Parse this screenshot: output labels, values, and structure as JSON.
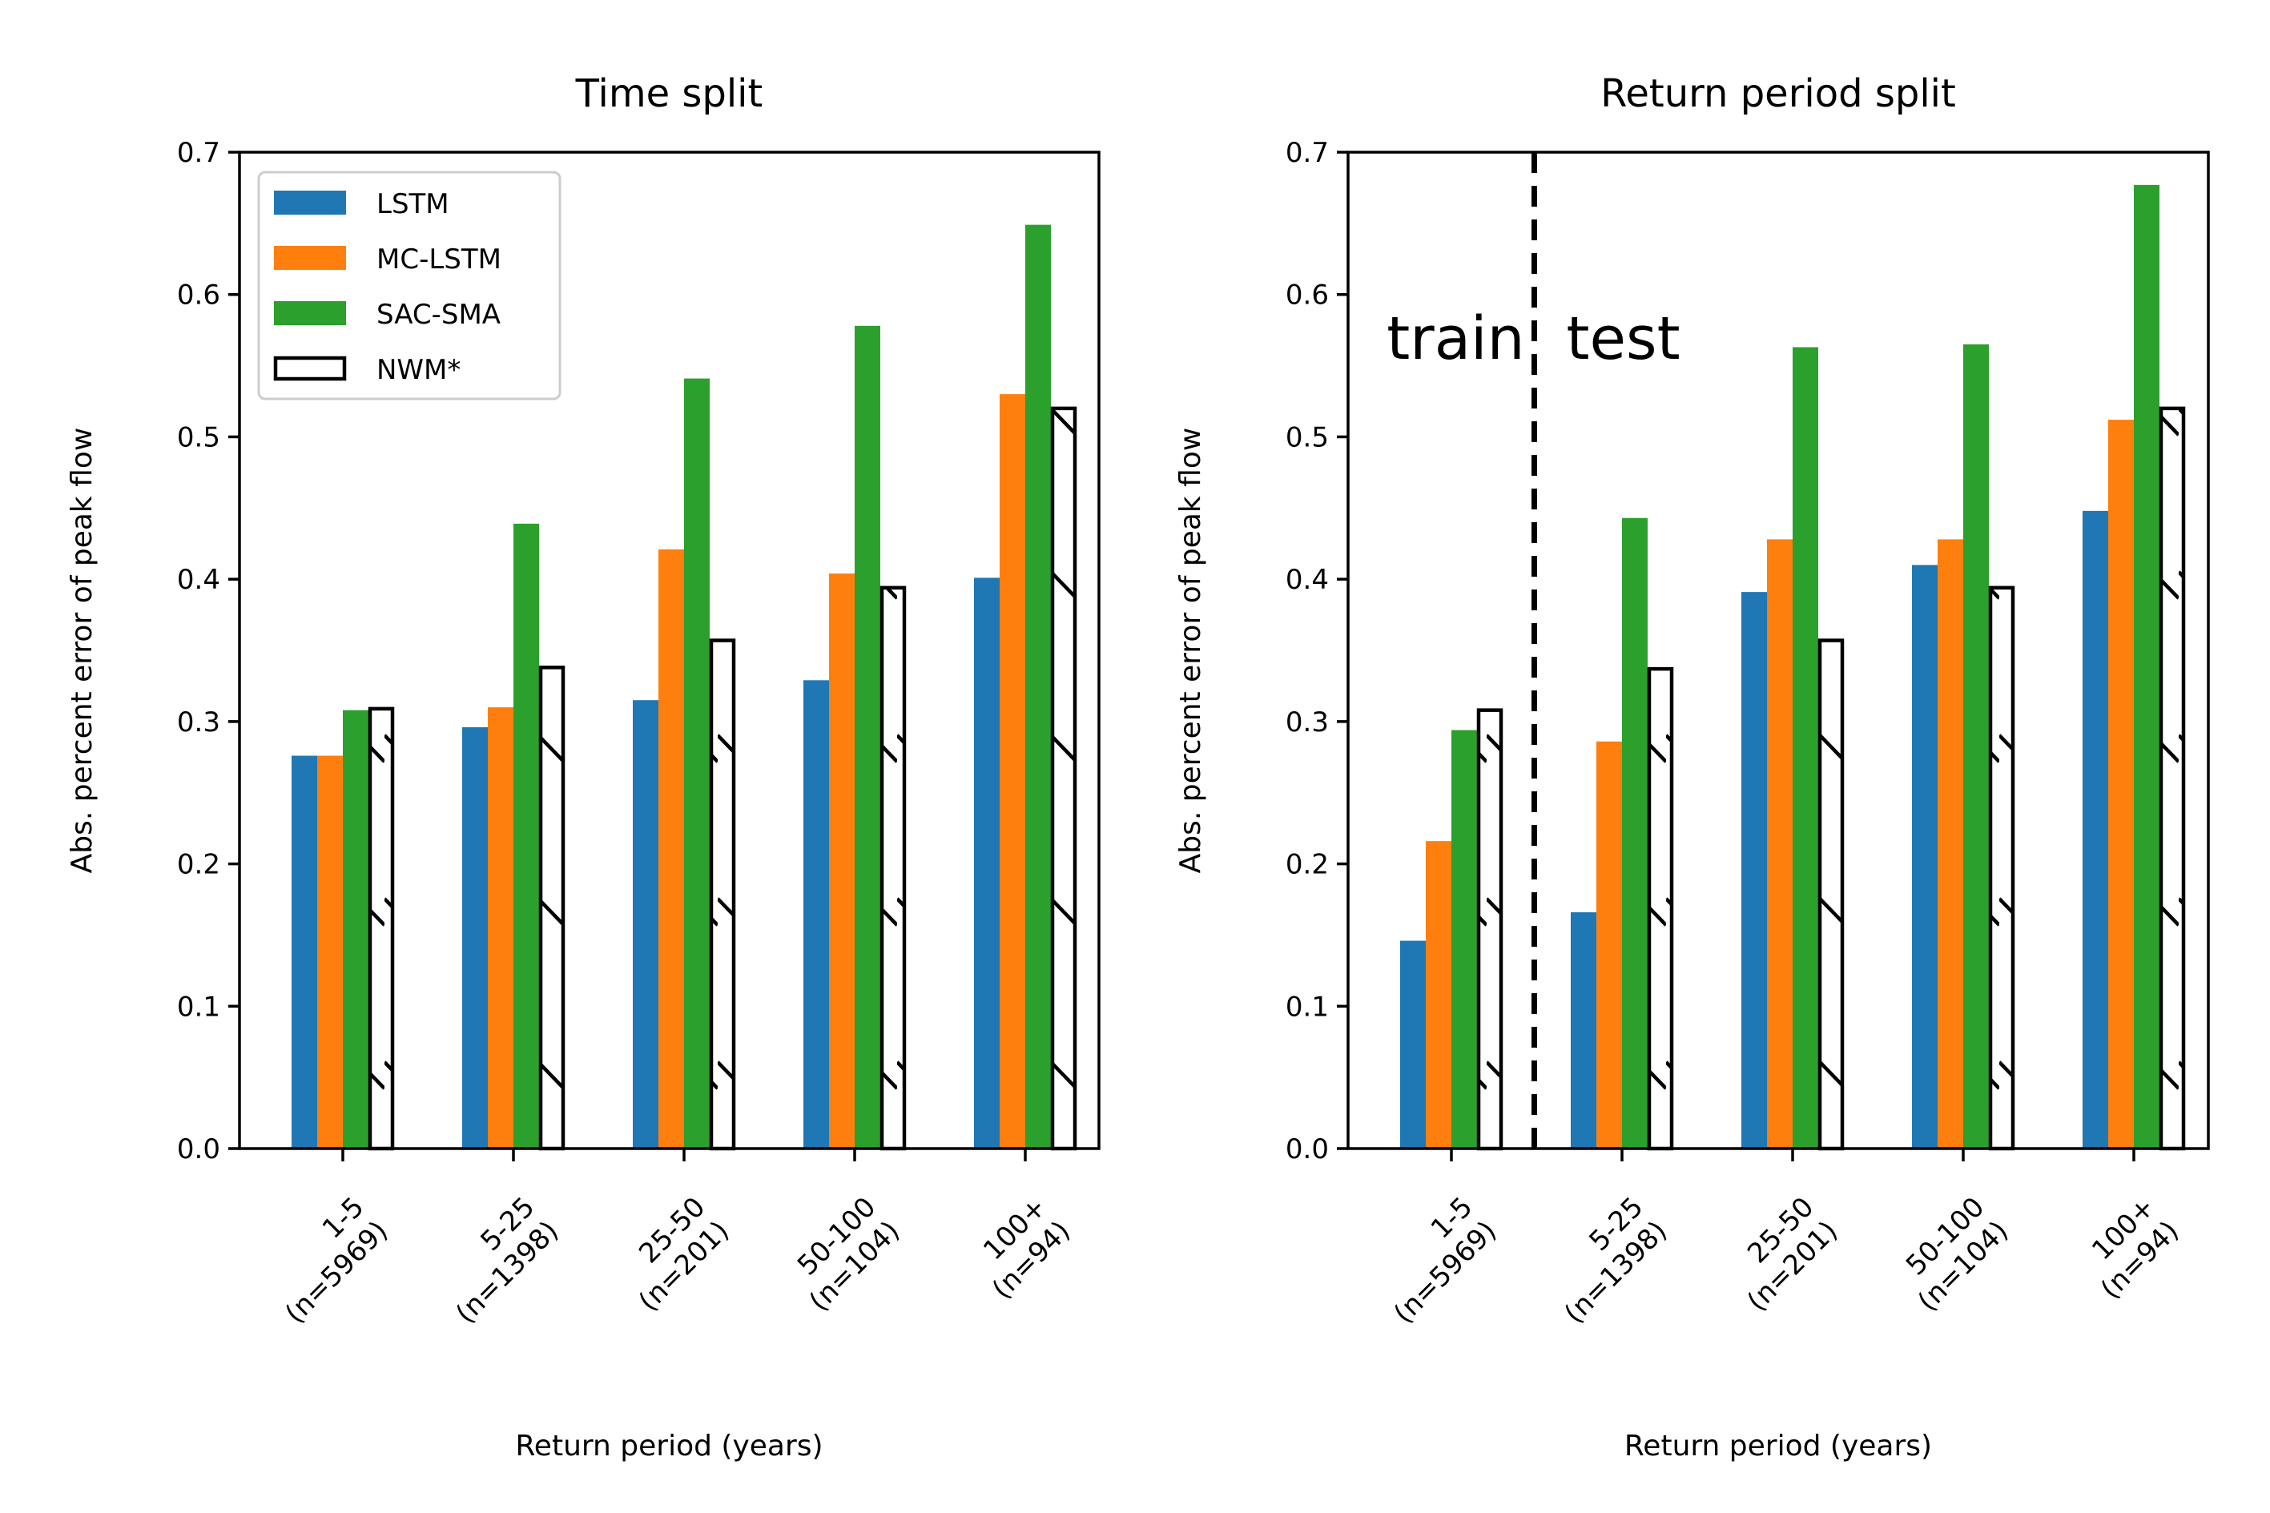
{
  "chart_data": [
    {
      "type": "bar",
      "title": "Time split",
      "xlabel": "Return period (years)",
      "ylabel": "Abs. percent error of peak flow",
      "ylim": [
        0,
        0.7
      ],
      "yticks": [
        "0.0",
        "0.1",
        "0.2",
        "0.3",
        "0.4",
        "0.5",
        "0.6",
        "0.7"
      ],
      "categories": [
        [
          "1-5",
          "(n=5969)"
        ],
        [
          "5-25",
          "(n=1398)"
        ],
        [
          "25-50",
          "(n=201)"
        ],
        [
          "50-100",
          "(n=104)"
        ],
        [
          "100+",
          "(n=94)"
        ]
      ],
      "series": [
        {
          "name": "LSTM",
          "color": "#1f77b4",
          "style": "filled",
          "values": [
            0.276,
            0.296,
            0.315,
            0.329,
            0.401
          ]
        },
        {
          "name": "MC-LSTM",
          "color": "#ff7f0e",
          "style": "filled",
          "values": [
            0.276,
            0.31,
            0.421,
            0.404,
            0.53
          ]
        },
        {
          "name": "SAC-SMA",
          "color": "#2ca02c",
          "style": "filled",
          "values": [
            0.308,
            0.439,
            0.541,
            0.578,
            0.649
          ]
        },
        {
          "name": "NWM*",
          "color": "#000000",
          "style": "hatched-outline",
          "values": [
            0.309,
            0.338,
            0.357,
            0.394,
            0.52
          ]
        }
      ],
      "legend": {
        "show": true,
        "position": "upper-left"
      },
      "grid": false
    },
    {
      "type": "bar",
      "title": "Return period split",
      "xlabel": "Return period (years)",
      "ylabel": "Abs. percent error of peak flow",
      "ylim": [
        0,
        0.7
      ],
      "yticks": [
        "0.0",
        "0.1",
        "0.2",
        "0.3",
        "0.4",
        "0.5",
        "0.6",
        "0.7"
      ],
      "categories": [
        [
          "1-5",
          "(n=5969)"
        ],
        [
          "5-25",
          "(n=1398)"
        ],
        [
          "25-50",
          "(n=201)"
        ],
        [
          "50-100",
          "(n=104)"
        ],
        [
          "100+",
          "(n=94)"
        ]
      ],
      "series": [
        {
          "name": "LSTM",
          "color": "#1f77b4",
          "style": "filled",
          "values": [
            0.146,
            0.166,
            0.391,
            0.41,
            0.448
          ]
        },
        {
          "name": "MC-LSTM",
          "color": "#ff7f0e",
          "style": "filled",
          "values": [
            0.216,
            0.286,
            0.428,
            0.428,
            0.512
          ]
        },
        {
          "name": "SAC-SMA",
          "color": "#2ca02c",
          "style": "filled",
          "values": [
            0.294,
            0.443,
            0.563,
            0.565,
            0.677
          ]
        },
        {
          "name": "NWM*",
          "color": "#000000",
          "style": "hatched-outline",
          "values": [
            0.308,
            0.337,
            0.357,
            0.394,
            0.52
          ]
        }
      ],
      "annotations": {
        "divider_after_category": 0,
        "divider_style": "dashed",
        "train_label": "train",
        "test_label": "test"
      },
      "legend": {
        "show": false
      },
      "grid": false
    }
  ]
}
